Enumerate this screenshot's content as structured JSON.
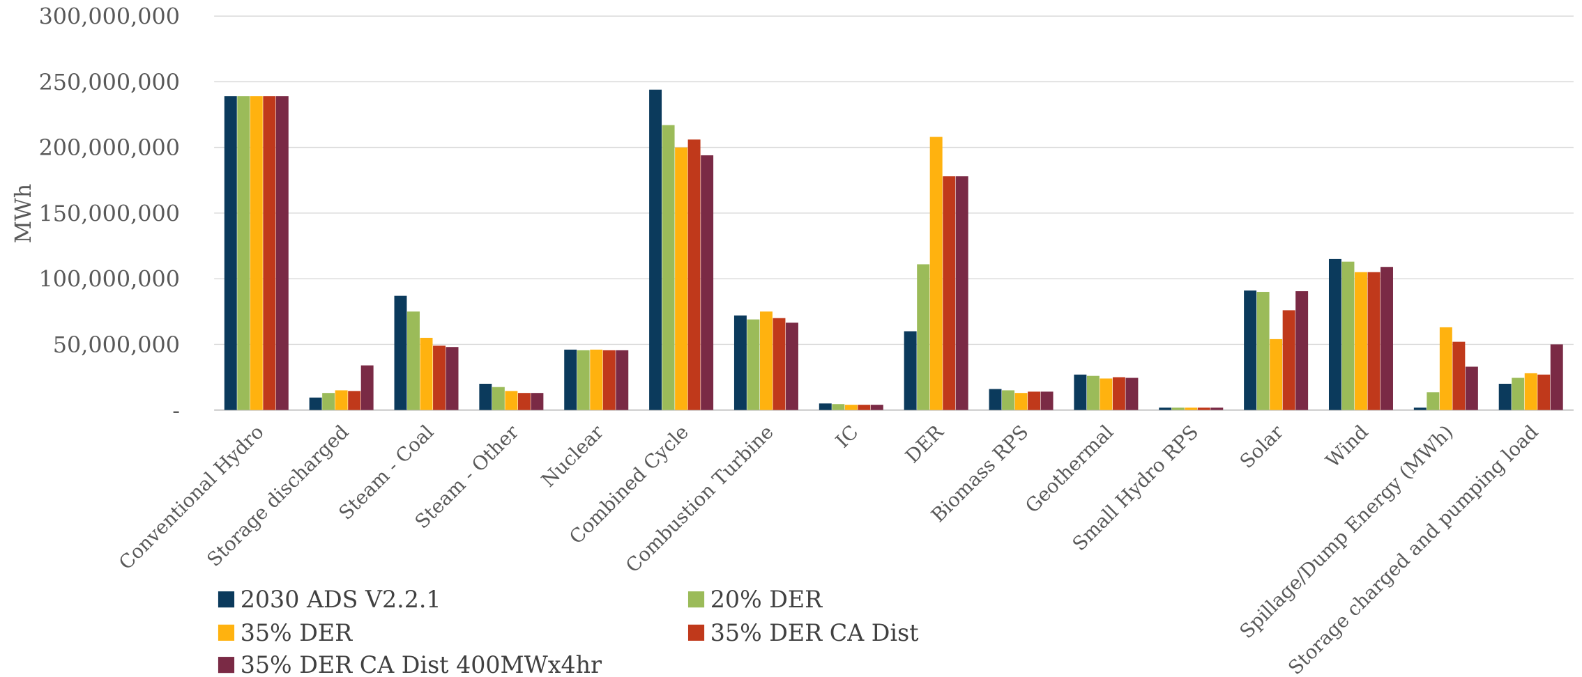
{
  "chart_data": {
    "type": "bar",
    "title": "",
    "xlabel": "",
    "ylabel": "MWh",
    "ylim": [
      0,
      300000000
    ],
    "yticks": [
      0,
      50000000,
      100000000,
      150000000,
      200000000,
      250000000,
      300000000
    ],
    "ytick_labels": [
      "-",
      "50,000,000",
      "100,000,000",
      "150,000,000",
      "200,000,000",
      "250,000,000",
      "300,000,000"
    ],
    "grid": true,
    "legend_position": "bottom-left",
    "categories": [
      "Conventional Hydro",
      "Storage discharged",
      "Steam - Coal",
      "Steam - Other",
      "Nuclear",
      "Combined Cycle",
      "Combustion Turbine",
      "IC",
      "DER",
      "Biomass RPS",
      "Geothermal",
      "Small Hydro RPS",
      "Solar",
      "Wind",
      "Spillage/Dump Energy (MWh)",
      "Storage charged and pumping load"
    ],
    "series": [
      {
        "name": "2030 ADS V2.2.1",
        "color": "#0b3a5c",
        "values": [
          239000000,
          9500000,
          87000000,
          20000000,
          46000000,
          244000000,
          72000000,
          5000000,
          60000000,
          16000000,
          27000000,
          1800000,
          91000000,
          115000000,
          1800000,
          20000000
        ]
      },
      {
        "name": "20% DER",
        "color": "#9bbb59",
        "values": [
          239000000,
          13000000,
          75000000,
          17500000,
          45500000,
          217000000,
          69000000,
          4500000,
          111000000,
          15000000,
          26000000,
          1800000,
          90000000,
          113000000,
          13500000,
          24500000
        ]
      },
      {
        "name": "35% DER",
        "color": "#ffb20f",
        "values": [
          239000000,
          15000000,
          55000000,
          14500000,
          46000000,
          200000000,
          75000000,
          4000000,
          208000000,
          13000000,
          24000000,
          1800000,
          54000000,
          105000000,
          63000000,
          28000000
        ]
      },
      {
        "name": "35% DER CA Dist",
        "color": "#c0391b",
        "values": [
          239000000,
          14500000,
          49000000,
          13000000,
          45500000,
          206000000,
          70000000,
          4000000,
          178000000,
          14000000,
          25000000,
          1800000,
          76000000,
          105000000,
          52000000,
          27000000
        ]
      },
      {
        "name": "35% DER CA Dist 400MWx4hr",
        "color": "#7a2a45",
        "values": [
          239000000,
          34000000,
          48000000,
          13000000,
          45500000,
          194000000,
          66500000,
          4000000,
          178000000,
          14000000,
          24500000,
          1800000,
          90500000,
          109000000,
          33000000,
          50000000
        ]
      }
    ]
  }
}
